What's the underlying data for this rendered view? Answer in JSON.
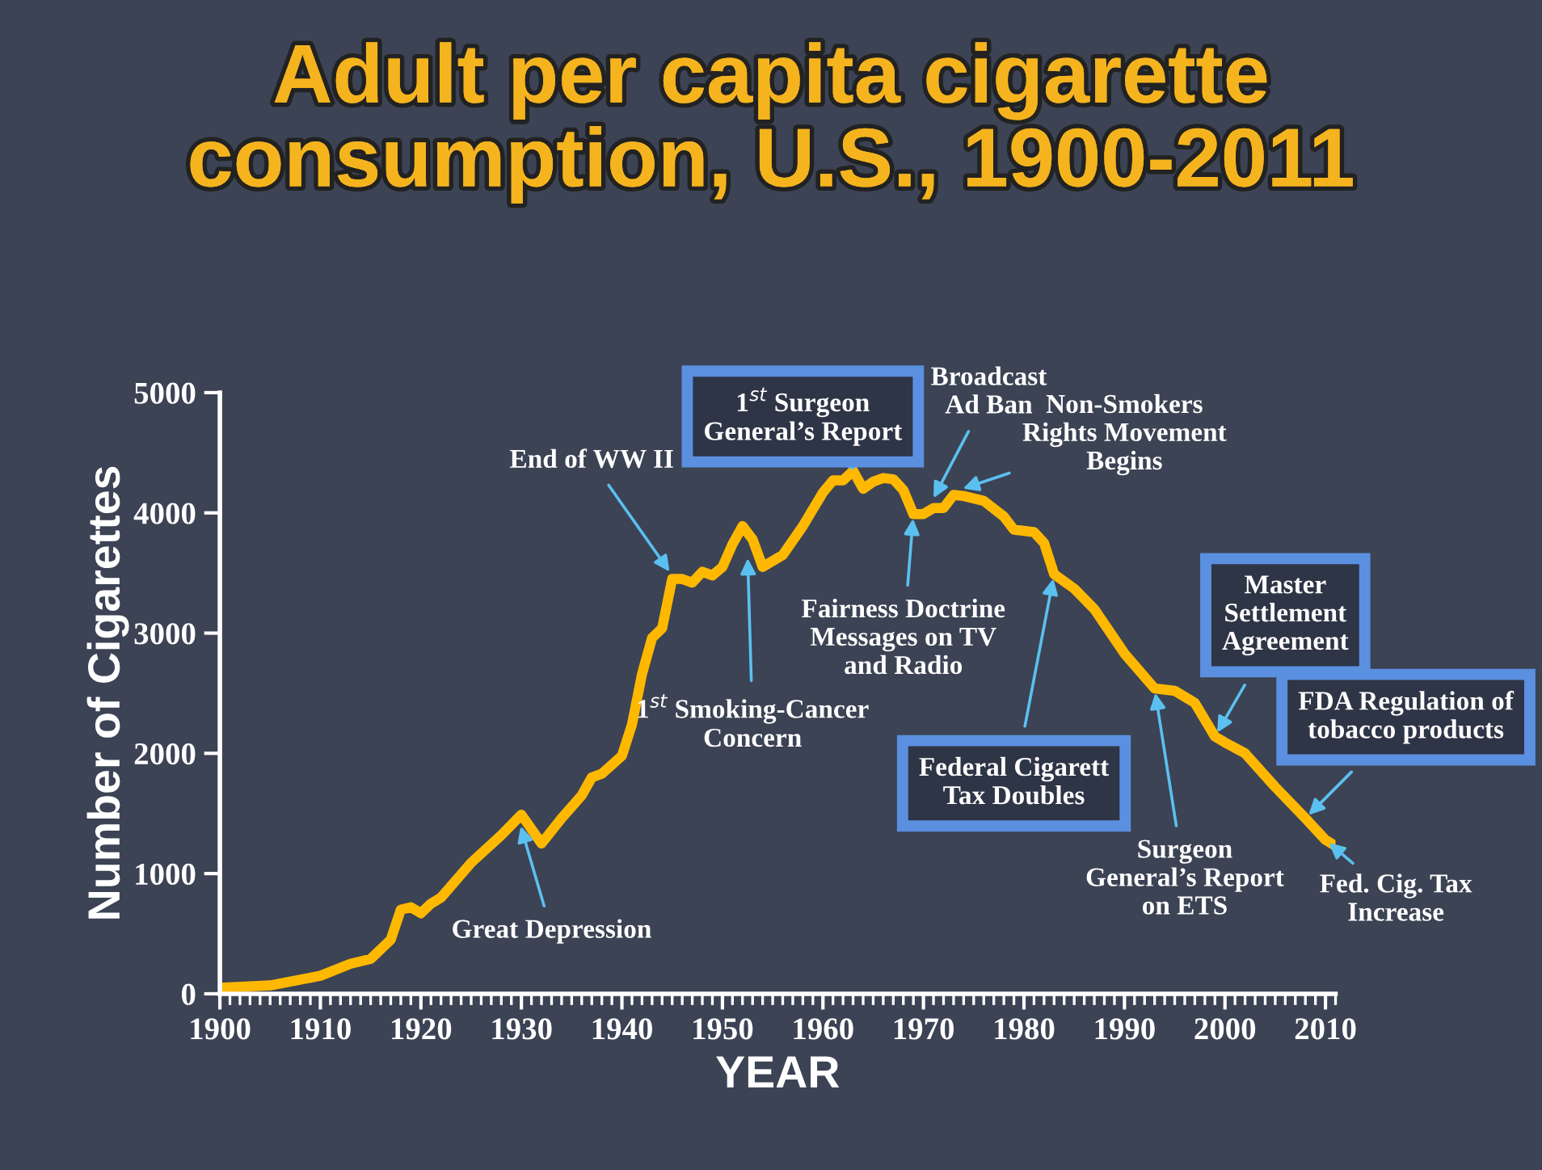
{
  "chart_data": {
    "type": "line",
    "title": "Adult per capita cigarette\nconsumption, U.S., 1900-2011",
    "xlabel": "YEAR",
    "ylabel": "Number of Cigarettes",
    "x": [
      1900,
      1905,
      1910,
      1913,
      1915,
      1917,
      1918,
      1919,
      1920,
      1921,
      1922,
      1925,
      1928,
      1930,
      1932,
      1934,
      1936,
      1937,
      1938,
      1940,
      1941,
      1942,
      1943,
      1944,
      1945,
      1946,
      1947,
      1948,
      1949,
      1950,
      1951,
      1952,
      1953,
      1954,
      1956,
      1958,
      1960,
      1961,
      1962,
      1963,
      1964,
      1965,
      1966,
      1967,
      1968,
      1969,
      1970,
      1971,
      1972,
      1973,
      1974,
      1976,
      1978,
      1979,
      1980,
      1981,
      1982,
      1983,
      1985,
      1987,
      1990,
      1993,
      1995,
      1997,
      1999,
      2000,
      2002,
      2005,
      2008,
      2010,
      2011
    ],
    "series": [
      {
        "color": "#ffb800",
        "values": [
          50,
          70,
          150,
          250,
          290,
          450,
          700,
          720,
          670,
          750,
          800,
          1090,
          1320,
          1490,
          1250,
          1460,
          1650,
          1800,
          1830,
          1980,
          2240,
          2660,
          2960,
          3040,
          3450,
          3450,
          3420,
          3510,
          3480,
          3550,
          3740,
          3890,
          3780,
          3550,
          3650,
          3890,
          4170,
          4270,
          4270,
          4350,
          4200,
          4260,
          4290,
          4280,
          4190,
          3990,
          3990,
          4040,
          4040,
          4150,
          4140,
          4100,
          3970,
          3860,
          3850,
          3840,
          3750,
          3490,
          3370,
          3200,
          2830,
          2540,
          2520,
          2420,
          2140,
          2090,
          2000,
          1720,
          1460,
          1280,
          1230
        ]
      }
    ],
    "xlim": [
      1900,
      2011
    ],
    "xticks": [
      1900,
      1910,
      1920,
      1930,
      1940,
      1950,
      1960,
      1970,
      1980,
      1990,
      2000,
      2010
    ],
    "ylim": [
      0,
      5000
    ],
    "yticks": [
      0,
      1000,
      2000,
      3000,
      4000,
      5000
    ],
    "grid": false,
    "annotations": [
      {
        "text": "1$^{st}$ Surgeon\nGeneral’s Report",
        "x": 1963.5,
        "y": 4330
      },
      {
        "text": "Broadcast\nAd Ban",
        "x": 1970.8,
        "y": 4090
      },
      {
        "text": "Non-Smokers\nRights Movement\nBegins",
        "x": 1973.5,
        "y": 4190
      },
      {
        "text": "End of WW II",
        "x": 1945,
        "y": 3480
      },
      {
        "text": "1$^{st}$ Smoking-Cancer\nConcern",
        "x": 1952.5,
        "y": 3660
      },
      {
        "text": "Fairness Doctrine\nMessages on TV\nand Radio",
        "x": 1969,
        "y": 3990
      },
      {
        "text": "Great Depression",
        "x": 1929.8,
        "y": 1430
      },
      {
        "text": "Federal Cigarett\nTax Doubles",
        "x": 1983,
        "y": 3490
      },
      {
        "text": "Surgeon\nGeneral’s Report\non ETS",
        "x": 1993,
        "y": 2540
      },
      {
        "text": "Master\nSettlement\nAgreement",
        "x": 1999,
        "y": 2140
      },
      {
        "text": "FDA Regulation of\ntobacco products",
        "x": 2008,
        "y": 1460
      },
      {
        "text": "Fed. Cig. Tax\nIncrease",
        "x": 2010,
        "y": 1280
      }
    ]
  }
}
